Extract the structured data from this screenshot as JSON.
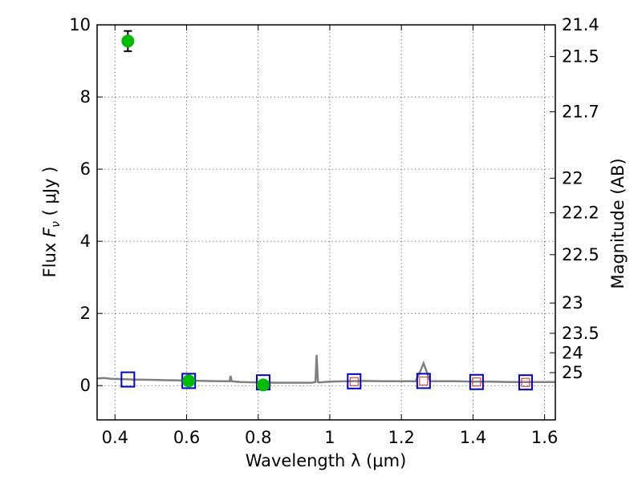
{
  "chart_data": {
    "type": "scatter",
    "title": "",
    "xlabel": "Wavelength  λ (μm)",
    "ylabel_prefix": "Flux  ",
    "ylabel_var": "F",
    "ylabel_sub": "ν",
    "ylabel_suffix": "  ( μJy )",
    "ylabel_right": "Magnitude (AB)",
    "xlim": [
      0.35,
      1.63
    ],
    "ylim": [
      -0.95,
      10
    ],
    "x_ticks": [
      0.4,
      0.6,
      0.8,
      1.0,
      1.2,
      1.4,
      1.6
    ],
    "x_tick_labels": [
      "0.4",
      "0.6",
      "0.8",
      "1",
      "1.2",
      "1.4",
      "1.6"
    ],
    "y_ticks": [
      0,
      2,
      4,
      6,
      8,
      10
    ],
    "y_tick_labels": [
      "0",
      "2",
      "4",
      "6",
      "8",
      "10"
    ],
    "right_ticks": [
      {
        "label": "21.4",
        "flux": 10.0
      },
      {
        "label": "21.5",
        "flux": 9.12
      },
      {
        "label": "21.7",
        "flux": 7.59
      },
      {
        "label": "22",
        "flux": 5.75
      },
      {
        "label": "22.2",
        "flux": 4.79
      },
      {
        "label": "22.5",
        "flux": 3.63
      },
      {
        "label": "23",
        "flux": 2.29
      },
      {
        "label": "23.5",
        "flux": 1.45
      },
      {
        "label": "24",
        "flux": 0.91
      },
      {
        "label": "25",
        "flux": 0.36
      }
    ],
    "grid": true,
    "colors": {
      "observed": "#00bb00",
      "model_square": "#0000cc",
      "model_inner": "#dd2222",
      "spectrum": "#808080"
    },
    "observed_points": [
      {
        "x": 0.436,
        "y": 9.55,
        "yerr": 0.28
      },
      {
        "x": 0.606,
        "y": 0.13,
        "yerr": 0.05
      },
      {
        "x": 0.814,
        "y": 0.02,
        "yerr": 0.05
      }
    ],
    "model_squares": [
      {
        "x": 0.436,
        "y": 0.17
      },
      {
        "x": 0.606,
        "y": 0.13
      },
      {
        "x": 0.814,
        "y": 0.09
      },
      {
        "x": 1.068,
        "y": 0.12
      },
      {
        "x": 1.262,
        "y": 0.13
      },
      {
        "x": 1.41,
        "y": 0.1
      },
      {
        "x": 1.547,
        "y": 0.09
      }
    ],
    "model_inner_points": [
      {
        "x": 1.068,
        "y": 0.11
      },
      {
        "x": 1.262,
        "y": 0.13
      },
      {
        "x": 1.41,
        "y": 0.1
      },
      {
        "x": 1.547,
        "y": 0.09
      }
    ],
    "spectrum": [
      [
        0.35,
        0.2
      ],
      [
        0.37,
        0.21
      ],
      [
        0.39,
        0.19
      ],
      [
        0.42,
        0.18
      ],
      [
        0.45,
        0.17
      ],
      [
        0.5,
        0.16
      ],
      [
        0.55,
        0.15
      ],
      [
        0.6,
        0.14
      ],
      [
        0.65,
        0.13
      ],
      [
        0.7,
        0.12
      ],
      [
        0.72,
        0.12
      ],
      [
        0.723,
        0.27
      ],
      [
        0.726,
        0.12
      ],
      [
        0.75,
        0.1
      ],
      [
        0.8,
        0.09
      ],
      [
        0.85,
        0.08
      ],
      [
        0.9,
        0.08
      ],
      [
        0.95,
        0.08
      ],
      [
        0.96,
        0.1
      ],
      [
        0.963,
        0.85
      ],
      [
        0.967,
        0.1
      ],
      [
        0.97,
        0.09
      ],
      [
        1.0,
        0.11
      ],
      [
        1.05,
        0.12
      ],
      [
        1.1,
        0.13
      ],
      [
        1.15,
        0.12
      ],
      [
        1.2,
        0.12
      ],
      [
        1.24,
        0.12
      ],
      [
        1.255,
        0.45
      ],
      [
        1.262,
        0.62
      ],
      [
        1.27,
        0.4
      ],
      [
        1.28,
        0.12
      ],
      [
        1.35,
        0.12
      ],
      [
        1.4,
        0.11
      ],
      [
        1.45,
        0.11
      ],
      [
        1.5,
        0.1
      ],
      [
        1.55,
        0.1
      ],
      [
        1.6,
        0.1
      ],
      [
        1.63,
        0.1
      ]
    ]
  }
}
